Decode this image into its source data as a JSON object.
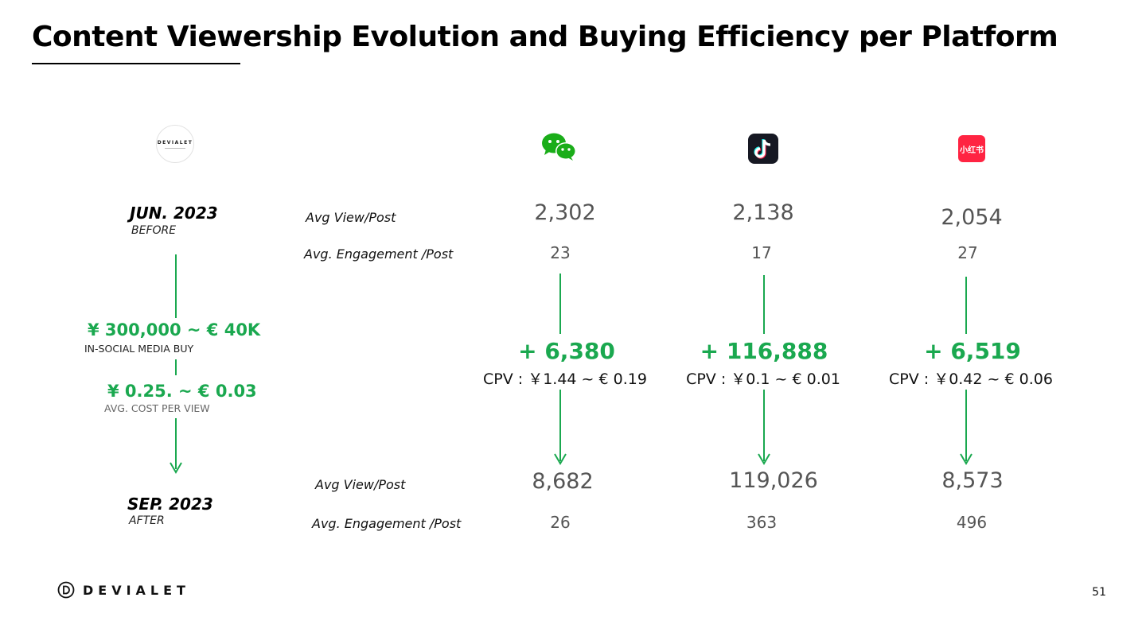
{
  "title": "Content Viewership Evolution and Buying Efficiency per Platform",
  "brand": {
    "logo_text": "DEVIALET"
  },
  "timeline": {
    "before_period": "JUN. 2023",
    "before_label": "BEFORE",
    "spend_amount": "¥ 300,000 ~ € 40K",
    "spend_label": "IN-SOCIAL MEDIA BUY",
    "cpv_amount": "¥ 0.25. ~ € 0.03",
    "cpv_label": "AVG. COST PER VIEW",
    "after_period": "SEP. 2023",
    "after_label": "AFTER"
  },
  "metric_labels": {
    "avg_view_before": "Avg View/Post",
    "avg_engagement_before": "Avg. Engagement /Post",
    "avg_view_after": "Avg View/Post",
    "avg_engagement_after": "Avg. Engagement /Post"
  },
  "platforms": [
    {
      "icon": "wechat-icon",
      "color": "#1aad19",
      "before_views": "2,302",
      "before_engagement": "23",
      "delta": "+ 6,380",
      "cpv": "CPV : ￥1.44 ~ € 0.19",
      "after_views": "8,682",
      "after_engagement": "26"
    },
    {
      "icon": "douyin-icon",
      "color": "#161823",
      "before_views": "2,138",
      "before_engagement": "17",
      "delta": "+ 116,888",
      "cpv": "CPV : ￥0.1 ~ € 0.01",
      "after_views": "119,026",
      "after_engagement": "363"
    },
    {
      "icon": "xiaohongshu-icon",
      "color": "#ff2442",
      "icon_text": "小红书",
      "before_views": "2,054",
      "before_engagement": "27",
      "delta": "+ 6,519",
      "cpv": "CPV : ￥0.42 ~ € 0.06",
      "after_views": "8,573",
      "after_engagement": "496"
    }
  ],
  "footer": {
    "logo_text": "DEVIALET",
    "page_number": "51"
  },
  "colors": {
    "accent_green": "#1aa84f"
  }
}
